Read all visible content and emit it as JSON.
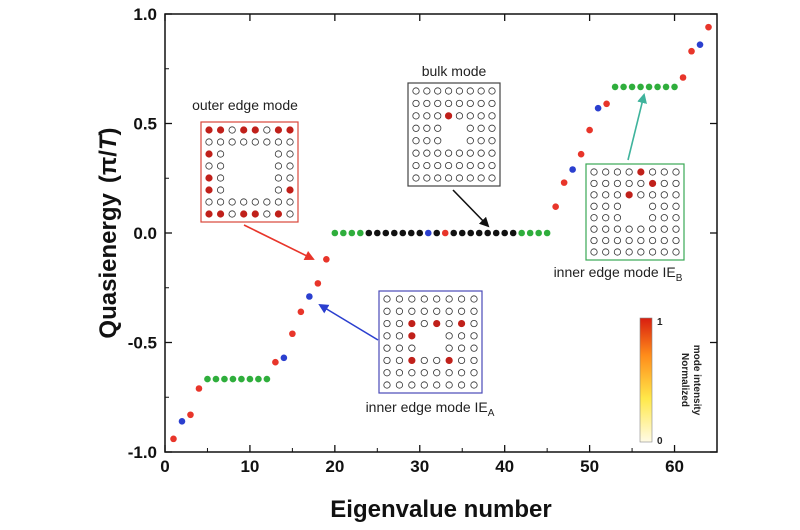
{
  "chart_data": {
    "type": "scatter",
    "title": "",
    "xlabel": "Eigenvalue number",
    "ylabel_main": "Quasienergy",
    "ylabel_unit_open": "(π/",
    "ylabel_unit_T": "T",
    "ylabel_unit_close": ")",
    "xlim": [
      0,
      65
    ],
    "ylim": [
      -1.0,
      1.0
    ],
    "xticks": [
      0,
      10,
      20,
      30,
      40,
      50,
      60
    ],
    "yticks": [
      -1.0,
      -0.5,
      0.0,
      0.5,
      1.0
    ],
    "ytick_labels": [
      "-1.0",
      "-0.5",
      "0.0",
      "0.5",
      "1.0"
    ],
    "grid": false,
    "colors": {
      "red": "#e8352a",
      "blue": "#2b3fcf",
      "green": "#2fae3c",
      "black": "#111111"
    },
    "points": [
      {
        "x": 1,
        "y": -0.94,
        "c": "red"
      },
      {
        "x": 2,
        "y": -0.86,
        "c": "blue"
      },
      {
        "x": 3,
        "y": -0.83,
        "c": "red"
      },
      {
        "x": 4,
        "y": -0.71,
        "c": "red"
      },
      {
        "x": 5,
        "y": -0.667,
        "c": "green"
      },
      {
        "x": 6,
        "y": -0.667,
        "c": "green"
      },
      {
        "x": 7,
        "y": -0.667,
        "c": "green"
      },
      {
        "x": 8,
        "y": -0.667,
        "c": "green"
      },
      {
        "x": 9,
        "y": -0.667,
        "c": "green"
      },
      {
        "x": 10,
        "y": -0.667,
        "c": "green"
      },
      {
        "x": 11,
        "y": -0.667,
        "c": "green"
      },
      {
        "x": 12,
        "y": -0.667,
        "c": "green"
      },
      {
        "x": 13,
        "y": -0.59,
        "c": "red"
      },
      {
        "x": 14,
        "y": -0.57,
        "c": "blue"
      },
      {
        "x": 15,
        "y": -0.46,
        "c": "red"
      },
      {
        "x": 16,
        "y": -0.36,
        "c": "red"
      },
      {
        "x": 17,
        "y": -0.29,
        "c": "blue"
      },
      {
        "x": 18,
        "y": -0.23,
        "c": "red"
      },
      {
        "x": 19,
        "y": -0.12,
        "c": "red"
      },
      {
        "x": 20,
        "y": 0.0,
        "c": "green"
      },
      {
        "x": 21,
        "y": 0.0,
        "c": "green"
      },
      {
        "x": 22,
        "y": 0.0,
        "c": "green"
      },
      {
        "x": 23,
        "y": 0.0,
        "c": "green"
      },
      {
        "x": 24,
        "y": 0.0,
        "c": "black"
      },
      {
        "x": 25,
        "y": 0.0,
        "c": "black"
      },
      {
        "x": 26,
        "y": 0.0,
        "c": "black"
      },
      {
        "x": 27,
        "y": 0.0,
        "c": "black"
      },
      {
        "x": 28,
        "y": 0.0,
        "c": "black"
      },
      {
        "x": 29,
        "y": 0.0,
        "c": "black"
      },
      {
        "x": 30,
        "y": 0.0,
        "c": "black"
      },
      {
        "x": 31,
        "y": 0.0,
        "c": "blue"
      },
      {
        "x": 32,
        "y": 0.0,
        "c": "black"
      },
      {
        "x": 33,
        "y": 0.0,
        "c": "red"
      },
      {
        "x": 34,
        "y": 0.0,
        "c": "black"
      },
      {
        "x": 35,
        "y": 0.0,
        "c": "black"
      },
      {
        "x": 36,
        "y": 0.0,
        "c": "black"
      },
      {
        "x": 37,
        "y": 0.0,
        "c": "black"
      },
      {
        "x": 38,
        "y": 0.0,
        "c": "black"
      },
      {
        "x": 39,
        "y": 0.0,
        "c": "black"
      },
      {
        "x": 40,
        "y": 0.0,
        "c": "black"
      },
      {
        "x": 41,
        "y": 0.0,
        "c": "black"
      },
      {
        "x": 42,
        "y": 0.0,
        "c": "green"
      },
      {
        "x": 43,
        "y": 0.0,
        "c": "green"
      },
      {
        "x": 44,
        "y": 0.0,
        "c": "green"
      },
      {
        "x": 45,
        "y": 0.0,
        "c": "green"
      },
      {
        "x": 46,
        "y": 0.12,
        "c": "red"
      },
      {
        "x": 47,
        "y": 0.23,
        "c": "red"
      },
      {
        "x": 48,
        "y": 0.29,
        "c": "blue"
      },
      {
        "x": 49,
        "y": 0.36,
        "c": "red"
      },
      {
        "x": 50,
        "y": 0.47,
        "c": "red"
      },
      {
        "x": 51,
        "y": 0.57,
        "c": "blue"
      },
      {
        "x": 52,
        "y": 0.59,
        "c": "red"
      },
      {
        "x": 53,
        "y": 0.667,
        "c": "green"
      },
      {
        "x": 54,
        "y": 0.667,
        "c": "green"
      },
      {
        "x": 55,
        "y": 0.667,
        "c": "green"
      },
      {
        "x": 56,
        "y": 0.667,
        "c": "green"
      },
      {
        "x": 57,
        "y": 0.667,
        "c": "green"
      },
      {
        "x": 58,
        "y": 0.667,
        "c": "green"
      },
      {
        "x": 59,
        "y": 0.667,
        "c": "green"
      },
      {
        "x": 60,
        "y": 0.667,
        "c": "green"
      },
      {
        "x": 61,
        "y": 0.71,
        "c": "red"
      },
      {
        "x": 62,
        "y": 0.83,
        "c": "red"
      },
      {
        "x": 63,
        "y": 0.86,
        "c": "blue"
      },
      {
        "x": 64,
        "y": 0.94,
        "c": "red"
      }
    ],
    "annotations": {
      "outer_edge": "outer edge mode",
      "bulk": "bulk mode",
      "inner_a_main": "inner edge mode IE",
      "inner_a_sub": "A",
      "inner_b_main": "inner edge mode IE",
      "inner_b_sub": "B"
    },
    "colorbar": {
      "label_line1": "Normalized",
      "label_line2": "mode intensity",
      "max_label": "1",
      "min_label": "0"
    },
    "insets": {
      "outer": {
        "border": "#d9453a",
        "filled": [
          [
            0,
            0
          ],
          [
            1,
            0
          ],
          [
            3,
            0
          ],
          [
            4,
            0
          ],
          [
            6,
            0
          ],
          [
            7,
            0
          ],
          [
            0,
            2
          ],
          [
            0,
            4
          ],
          [
            0,
            5
          ],
          [
            7,
            5
          ],
          [
            0,
            7
          ],
          [
            1,
            7
          ],
          [
            3,
            7
          ],
          [
            4,
            7
          ],
          [
            6,
            7
          ]
        ]
      },
      "bulk": {
        "border": "#444444",
        "filled": [
          [
            3,
            2
          ]
        ]
      },
      "inner_a": {
        "border": "#4a4ab8",
        "filled": [
          [
            2,
            2
          ],
          [
            4,
            2
          ],
          [
            6,
            2
          ],
          [
            2,
            3
          ],
          [
            2,
            5
          ],
          [
            5,
            5
          ]
        ]
      },
      "inner_b": {
        "border": "#3aa855",
        "filled": [
          [
            4,
            0
          ],
          [
            5,
            1
          ],
          [
            3,
            2
          ]
        ]
      }
    }
  }
}
